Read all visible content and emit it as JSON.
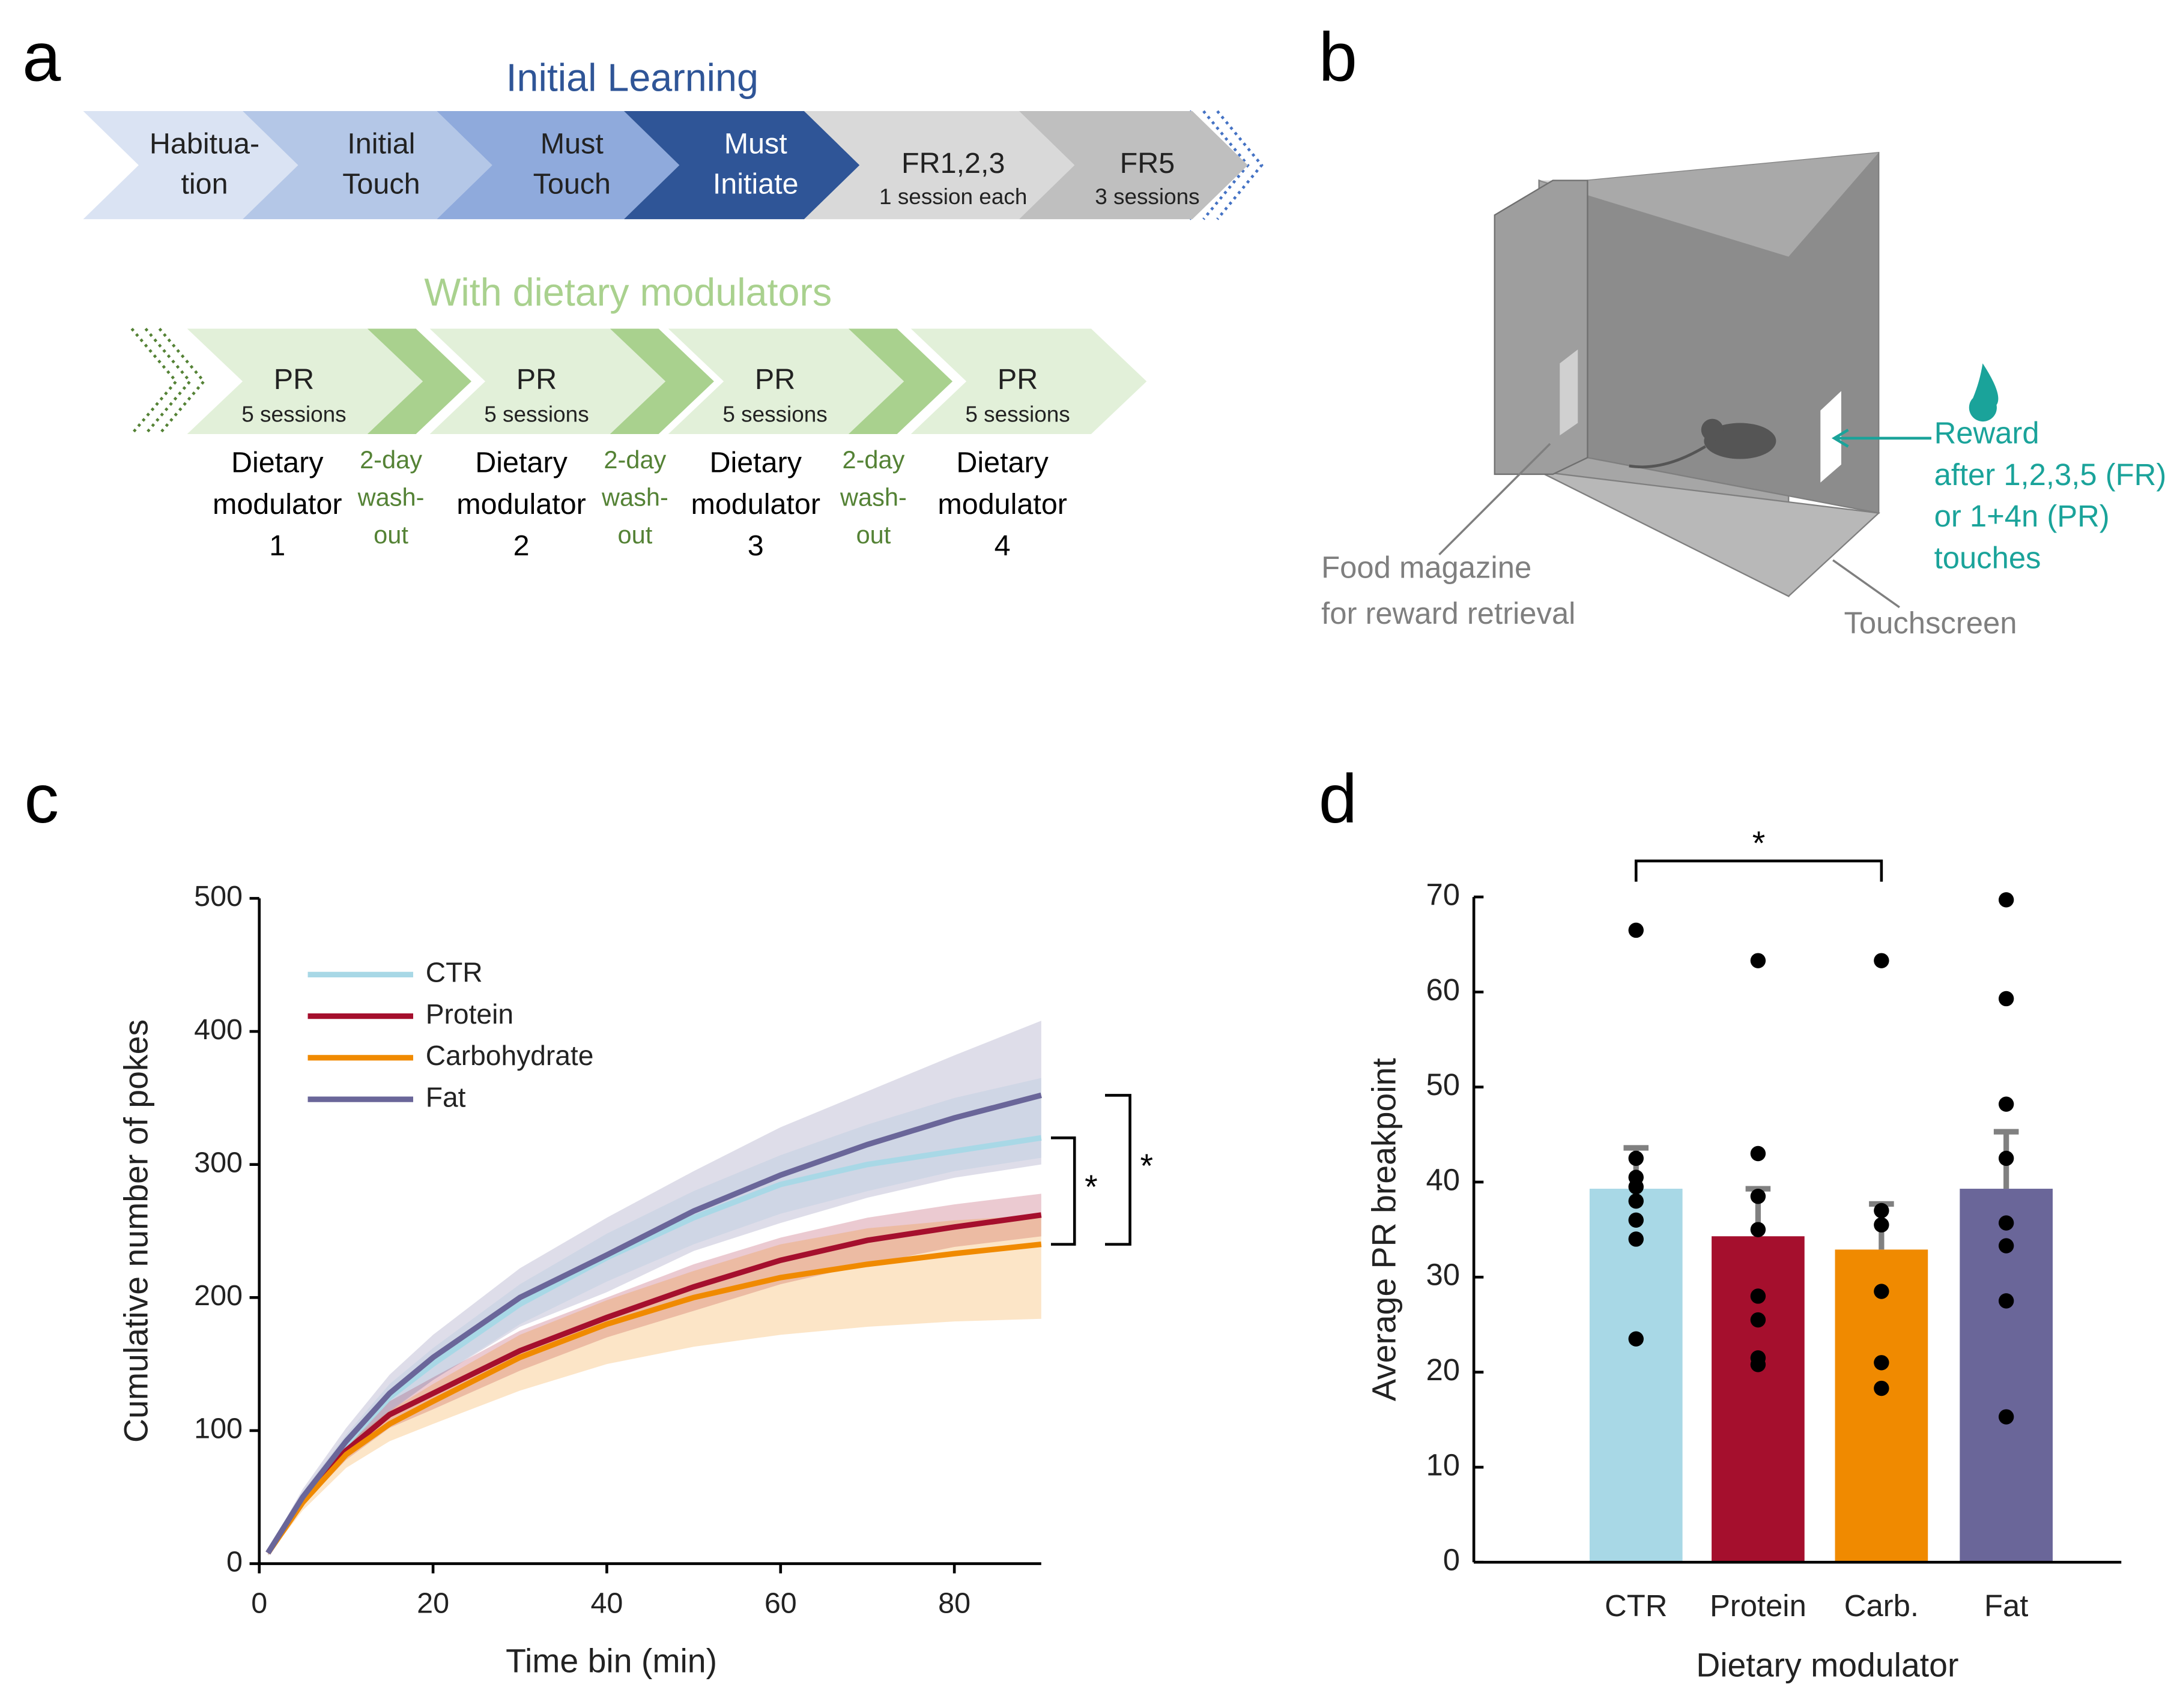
{
  "panel_labels": [
    "a",
    "b",
    "c",
    "d"
  ],
  "panel_a": {
    "title": "Initial Learning",
    "title_color": "#2f5597",
    "steps": [
      {
        "lines": [
          "Habitua-",
          "tion"
        ],
        "color": "#dae3f3"
      },
      {
        "lines": [
          "Initial",
          "Touch"
        ],
        "color": "#b4c7e7"
      },
      {
        "lines": [
          "Must",
          "Touch"
        ],
        "color": "#8faadc"
      },
      {
        "lines": [
          "Must",
          "Initiate"
        ],
        "color": "#2f5597"
      },
      {
        "lines": [
          "FR1,2,3"
        ],
        "sub": "1 session each",
        "color": "#d9d9d9"
      },
      {
        "lines": [
          "FR5"
        ],
        "sub": "3 sessions",
        "color": "#bfbfbf"
      }
    ],
    "modulator_title": "With dietary modulators",
    "modulator_color": "#a9d18e",
    "block_color": "#e2f0d9",
    "washout_color": "#548235",
    "blocks": [
      {
        "label": "PR",
        "sub": "5 sessions",
        "modulator": [
          "Dietary",
          "modulator",
          "1"
        ]
      },
      {
        "label": "PR",
        "sub": "5 sessions",
        "modulator": [
          "Dietary",
          "modulator",
          "2"
        ]
      },
      {
        "label": "PR",
        "sub": "5 sessions",
        "modulator": [
          "Dietary",
          "modulator",
          "3"
        ]
      },
      {
        "label": "PR",
        "sub": "5 sessions",
        "modulator": [
          "Dietary",
          "modulator",
          "4"
        ]
      }
    ],
    "washout": [
      "2-day",
      "wash-",
      "out"
    ]
  },
  "panel_b": {
    "magazine": [
      "Food magazine",
      "for reward retrieval"
    ],
    "reward": [
      "Reward",
      "after 1,2,3,5 (FR)",
      "or 1+4n (PR)",
      "touches"
    ],
    "reward_color": "#1aa39a",
    "touchscreen": "Touchscreen"
  },
  "chart_data": [
    {
      "type": "line",
      "xlabel": "Time bin (min)",
      "ylabel": "Cumulative number of pokes",
      "x": [
        1,
        5,
        10,
        15,
        20,
        30,
        40,
        50,
        60,
        70,
        80,
        90
      ],
      "xlim": [
        0,
        90
      ],
      "xticks": [
        0,
        20,
        40,
        60,
        80
      ],
      "ylim": [
        0,
        500
      ],
      "yticks": [
        0,
        100,
        200,
        300,
        400,
        500
      ],
      "legend": "upper left",
      "annotations": [
        "*",
        "*"
      ],
      "series": [
        {
          "name": "CTR",
          "color": "#a8d8e6",
          "values": [
            8,
            50,
            90,
            125,
            150,
            195,
            230,
            260,
            285,
            300,
            310,
            320
          ],
          "upper": [
            9,
            54,
            97,
            135,
            162,
            210,
            248,
            280,
            307,
            330,
            350,
            365
          ],
          "lower": [
            7,
            46,
            83,
            115,
            138,
            180,
            212,
            240,
            263,
            280,
            295,
            305
          ]
        },
        {
          "name": "Protein",
          "color": "#a50f2d",
          "values": [
            8,
            48,
            85,
            112,
            128,
            160,
            185,
            208,
            228,
            243,
            253,
            262
          ],
          "upper": [
            9,
            52,
            92,
            122,
            140,
            175,
            200,
            225,
            245,
            260,
            270,
            278
          ],
          "lower": [
            7,
            44,
            78,
            102,
            116,
            145,
            170,
            190,
            210,
            225,
            238,
            246
          ]
        },
        {
          "name": "Carbohydrate",
          "color": "#f08a00",
          "values": [
            8,
            46,
            82,
            105,
            122,
            155,
            180,
            200,
            215,
            225,
            233,
            240
          ],
          "upper": [
            9,
            50,
            90,
            115,
            135,
            172,
            198,
            220,
            240,
            252,
            258,
            262
          ],
          "lower": [
            6,
            40,
            72,
            92,
            105,
            130,
            150,
            163,
            172,
            178,
            182,
            184
          ]
        },
        {
          "name": "Fat",
          "color": "#6a6699",
          "values": [
            8,
            50,
            92,
            128,
            155,
            200,
            232,
            265,
            292,
            315,
            335,
            352
          ],
          "upper": [
            10,
            56,
            102,
            142,
            172,
            222,
            260,
            295,
            328,
            355,
            382,
            408
          ],
          "lower": [
            6,
            44,
            82,
            114,
            138,
            178,
            204,
            235,
            256,
            275,
            290,
            300
          ]
        }
      ]
    },
    {
      "type": "bar",
      "xlabel": "Dietary modulator",
      "ylabel": "Average PR breakpoint",
      "categories": [
        "CTR",
        "Protein",
        "Carb.",
        "Fat"
      ],
      "values": [
        39.3,
        34.3,
        32.9,
        39.3
      ],
      "errors": [
        4.3,
        5.0,
        4.8,
        6.0
      ],
      "colors": [
        "#a8d8e6",
        "#a50f2d",
        "#f08a00",
        "#6a6699"
      ],
      "points": [
        [
          66.5,
          42.5,
          40.5,
          39.5,
          38,
          36,
          34,
          23.5
        ],
        [
          63.3,
          43,
          38.5,
          35,
          28,
          25.5,
          21.5,
          20.8
        ],
        [
          63.3,
          37,
          35.5,
          28.5,
          21,
          18.3
        ],
        [
          69.7,
          59.3,
          48.2,
          42.5,
          35.7,
          33.3,
          27.5,
          15.3
        ]
      ],
      "ylim": [
        0,
        70
      ],
      "yticks": [
        0,
        10,
        20,
        30,
        40,
        50,
        60,
        70
      ],
      "annotations": [
        "*"
      ]
    }
  ]
}
